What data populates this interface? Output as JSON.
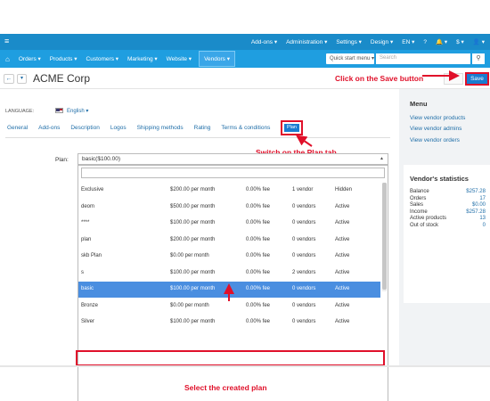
{
  "topbar": {
    "menu_icon": "hamburger-icon",
    "right_items": [
      "Add-ons ▾",
      "Administration ▾",
      "Settings ▾",
      "Design ▾",
      "EN ▾",
      "?",
      "🔔 ▾",
      "$ ▾",
      "👤 ▾"
    ]
  },
  "nav": {
    "items": [
      "Orders ▾",
      "Products ▾",
      "Customers ▾",
      "Marketing ▾",
      "Website ▾"
    ],
    "vendors": "Vendors ▾",
    "quick_start": "Quick start menu ▾",
    "search_placeholder": "Search"
  },
  "header": {
    "title": "ACME Corp",
    "save": "Save"
  },
  "language": {
    "label": "LANGUAGE:",
    "value": "English ▾"
  },
  "tabs": [
    "General",
    "Add-ons",
    "Description",
    "Logos",
    "Shipping methods",
    "Rating",
    "Terms & conditions"
  ],
  "plan_tab": "Plan",
  "plan_field": {
    "label": "Plan:",
    "value": "basic($100.00)"
  },
  "plans": [
    {
      "name": "Exclusive",
      "price": "$200.00 per month",
      "fee": "0.00% fee",
      "vendors": "1 vendor",
      "status": "Hidden"
    },
    {
      "name": "deom",
      "price": "$500.00 per month",
      "fee": "0.00% fee",
      "vendors": "0 vendors",
      "status": "Active"
    },
    {
      "name": "****",
      "price": "$100.00 per month",
      "fee": "0.00% fee",
      "vendors": "0 vendors",
      "status": "Active"
    },
    {
      "name": "plan",
      "price": "$200.00 per month",
      "fee": "0.00% fee",
      "vendors": "0 vendors",
      "status": "Active"
    },
    {
      "name": "skb Plan",
      "price": "$0.00 per month",
      "fee": "0.00% fee",
      "vendors": "0 vendors",
      "status": "Active"
    },
    {
      "name": "s",
      "price": "$100.00 per month",
      "fee": "0.00% fee",
      "vendors": "2 vendors",
      "status": "Active"
    },
    {
      "name": "basic",
      "price": "$100.00 per month",
      "fee": "0.00% fee",
      "vendors": "0 vendors",
      "status": "Active"
    },
    {
      "name": "Bronze",
      "price": "$0.00 per month",
      "fee": "0.00% fee",
      "vendors": "0 vendors",
      "status": "Active"
    },
    {
      "name": "Silver",
      "price": "$100.00 per month",
      "fee": "0.00% fee",
      "vendors": "0 vendors",
      "status": "Active"
    }
  ],
  "annotations": {
    "save_hint": "Click on the Save button",
    "plan_hint": "Switch on the Plan tab",
    "select_hint": "Select the created plan",
    "color": "#e0102a"
  },
  "sidebar": {
    "menu_title": "Menu",
    "links": [
      "View vendor products",
      "View vendor admins",
      "View vendor orders"
    ],
    "stats_title": "Vendor's statistics",
    "stats": [
      {
        "label": "Balance",
        "value": "$257.28"
      },
      {
        "label": "Orders",
        "value": "17"
      },
      {
        "label": "Sales",
        "value": "$0.00"
      },
      {
        "label": "Income",
        "value": "$257.28"
      },
      {
        "label": "Active products",
        "value": "13"
      },
      {
        "label": "Out of stock",
        "value": "0"
      }
    ]
  },
  "colors": {
    "topbar": "#1a8bc9",
    "nav": "#1f9ee0",
    "accent": "#1a7cd0",
    "selected_row": "#4a8ee0"
  }
}
